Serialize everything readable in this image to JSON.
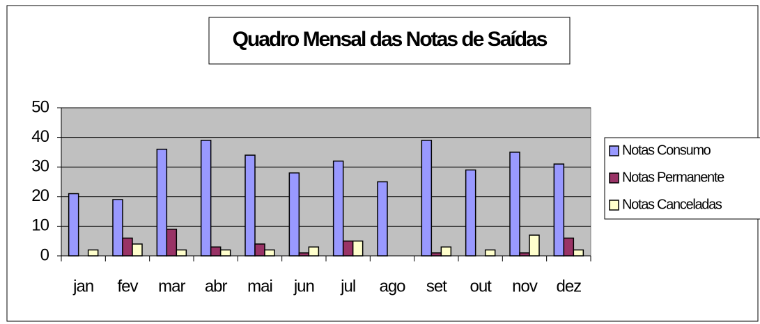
{
  "chart_data": {
    "type": "bar",
    "title": "Quadro Mensal das Notas de Saídas",
    "categories": [
      "jan",
      "fev",
      "mar",
      "abr",
      "mai",
      "jun",
      "jul",
      "ago",
      "set",
      "out",
      "nov",
      "dez"
    ],
    "series": [
      {
        "name": "Notas Consumo",
        "color": "#9999ff",
        "values": [
          21,
          19,
          36,
          39,
          34,
          28,
          32,
          25,
          39,
          29,
          35,
          31
        ]
      },
      {
        "name": "Notas Permanente",
        "color": "#993366",
        "values": [
          0,
          6,
          9,
          3,
          4,
          1,
          5,
          0,
          1,
          0,
          1,
          6
        ]
      },
      {
        "name": "Notas Canceladas",
        "color": "#ffffcc",
        "values": [
          2,
          4,
          2,
          2,
          2,
          3,
          5,
          0,
          3,
          2,
          7,
          2
        ]
      }
    ],
    "ylim": [
      0,
      50
    ],
    "yticks": [
      0,
      10,
      20,
      30,
      40,
      50
    ],
    "grid": true,
    "legend": "right"
  }
}
